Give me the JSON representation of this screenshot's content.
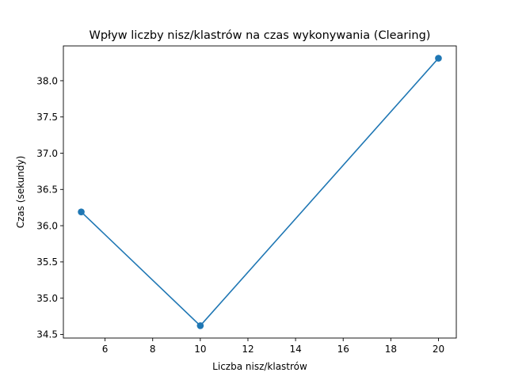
{
  "chart_data": {
    "type": "line",
    "title": "Wpływ liczby nisz/klastrów na czas wykonywania (Clearing)",
    "xlabel": "Liczba nisz/klastrów",
    "ylabel": "Czas (sekundy)",
    "xlim": [
      4.25,
      20.75
    ],
    "ylim": [
      34.45,
      38.48
    ],
    "xticks": [
      6,
      8,
      10,
      12,
      14,
      16,
      18,
      20
    ],
    "yticks": [
      34.5,
      35.0,
      35.5,
      36.0,
      36.5,
      37.0,
      37.5,
      38.0
    ],
    "ytick_format_decimals": 1,
    "grid": false,
    "marker": "circle",
    "series": [
      {
        "color": "#1f77b4",
        "x": [
          5,
          10,
          20
        ],
        "y": [
          36.19,
          34.62,
          38.31
        ]
      }
    ]
  }
}
